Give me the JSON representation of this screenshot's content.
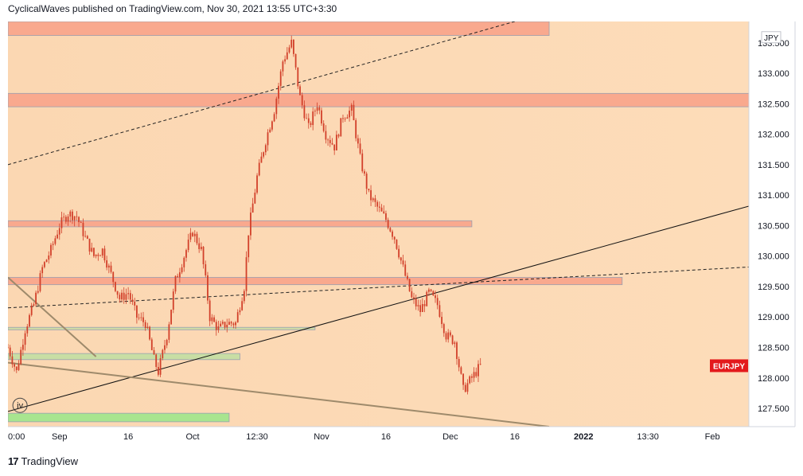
{
  "header": {
    "publisher_line": "CyclicalWaves published on TradingView.com, Nov 30, 2021 13:55 UTC+3:30"
  },
  "footer": {
    "brand": "TradingView"
  },
  "chart_data": {
    "type": "candlestick",
    "symbol_label": "EURJPY",
    "currency_label": "JPY",
    "wave_label": "iv",
    "ylim": [
      127.2,
      133.85
    ],
    "y_ticks": [
      "133.500",
      "133.000",
      "132.500",
      "132.000",
      "131.500",
      "131.000",
      "130.500",
      "130.000",
      "129.500",
      "129.000",
      "128.500",
      "128.000",
      "127.500"
    ],
    "x_ticks": [
      {
        "label": "0:00",
        "t": 0
      },
      {
        "label": "Sep",
        "t": 12
      },
      {
        "label": "16",
        "t": 28
      },
      {
        "label": "Oct",
        "t": 43
      },
      {
        "label": "12:30",
        "t": 58
      },
      {
        "label": "Nov",
        "t": 73
      },
      {
        "label": "16",
        "t": 88
      },
      {
        "label": "Dec",
        "t": 103
      },
      {
        "label": "16",
        "t": 118
      },
      {
        "label": "2022",
        "t": 134,
        "bold": true
      },
      {
        "label": "13:30",
        "t": 149
      },
      {
        "label": "Feb",
        "t": 164
      }
    ],
    "t_range": [
      0,
      172.5
    ],
    "price_path": [
      [
        0,
        128.5
      ],
      [
        2,
        128.1
      ],
      [
        4,
        128.8
      ],
      [
        6,
        129.2
      ],
      [
        8,
        129.8
      ],
      [
        10,
        130.1
      ],
      [
        12,
        130.5
      ],
      [
        14,
        130.7
      ],
      [
        16,
        130.65
      ],
      [
        18,
        130.3
      ],
      [
        20,
        130.0
      ],
      [
        22,
        130.1
      ],
      [
        24,
        129.7
      ],
      [
        26,
        129.3
      ],
      [
        28,
        129.4
      ],
      [
        30,
        129.0
      ],
      [
        32,
        128.9
      ],
      [
        34,
        128.3
      ],
      [
        35,
        128.1
      ],
      [
        37,
        128.7
      ],
      [
        39,
        129.6
      ],
      [
        41,
        130.0
      ],
      [
        43,
        130.4
      ],
      [
        45,
        130.1
      ],
      [
        46,
        129.6
      ],
      [
        47,
        129.0
      ],
      [
        49,
        128.8
      ],
      [
        51,
        128.9
      ],
      [
        53,
        128.9
      ],
      [
        55,
        129.5
      ],
      [
        56,
        130.4
      ],
      [
        58,
        131.3
      ],
      [
        60,
        131.9
      ],
      [
        62,
        132.4
      ],
      [
        64,
        133.2
      ],
      [
        66,
        133.5
      ],
      [
        68,
        132.6
      ],
      [
        70,
        132.1
      ],
      [
        72,
        132.5
      ],
      [
        74,
        132.0
      ],
      [
        76,
        131.8
      ],
      [
        78,
        132.3
      ],
      [
        80,
        132.4
      ],
      [
        82,
        131.6
      ],
      [
        84,
        131.0
      ],
      [
        86,
        130.8
      ],
      [
        88,
        130.6
      ],
      [
        90,
        130.3
      ],
      [
        92,
        129.8
      ],
      [
        94,
        129.3
      ],
      [
        96,
        129.1
      ],
      [
        98,
        129.4
      ],
      [
        100,
        129.2
      ],
      [
        102,
        128.7
      ],
      [
        104,
        128.6
      ],
      [
        106,
        127.8
      ],
      [
        108,
        128.0
      ],
      [
        110,
        128.2
      ]
    ],
    "zones": [
      {
        "y_top": 133.85,
        "y_bottom": 133.62,
        "t_start": 0,
        "t_end": 126,
        "color": "#f9a98e"
      },
      {
        "y_top": 132.67,
        "y_bottom": 132.45,
        "t_start": 0,
        "t_end": 172.5,
        "color": "#f9a98e"
      },
      {
        "y_top": 130.58,
        "y_bottom": 130.48,
        "t_start": 0,
        "t_end": 108,
        "color": "#f9a98e"
      },
      {
        "y_top": 129.65,
        "y_bottom": 129.53,
        "t_start": 0,
        "t_end": 143,
        "color": "#f9a98e"
      },
      {
        "y_top": 128.83,
        "y_bottom": 128.79,
        "t_start": 0,
        "t_end": 71.5,
        "color": "#cfdba6"
      },
      {
        "y_top": 128.4,
        "y_bottom": 128.3,
        "t_start": 0,
        "t_end": 54,
        "color": "#c8dea4"
      },
      {
        "y_top": 127.42,
        "y_bottom": 127.28,
        "t_start": 0,
        "t_end": 51.5,
        "color": "#a8e58f"
      }
    ],
    "trendlines": [
      {
        "p1": [
          0,
          131.5
        ],
        "p2": [
          118,
          133.85
        ],
        "style": "dashed",
        "color": "#222222"
      },
      {
        "p1": [
          0,
          129.15
        ],
        "p2": [
          172.5,
          129.82
        ],
        "style": "dashed",
        "color": "#222222"
      },
      {
        "p1": [
          0,
          127.45
        ],
        "p2": [
          172.5,
          130.82
        ],
        "style": "solid",
        "color": "#111111"
      },
      {
        "p1": [
          0,
          129.65
        ],
        "p2": [
          20.5,
          128.35
        ],
        "style": "solid",
        "color": "#9e8a6b"
      },
      {
        "p1": [
          0,
          128.25
        ],
        "p2": [
          126,
          127.2
        ],
        "style": "solid",
        "color": "#9e8a6b"
      }
    ],
    "grid": false,
    "background_gradient": [
      "#fbd7b2",
      "#fddcb9"
    ],
    "candle_color": "#d2402a",
    "label_color": "#e3191c"
  }
}
